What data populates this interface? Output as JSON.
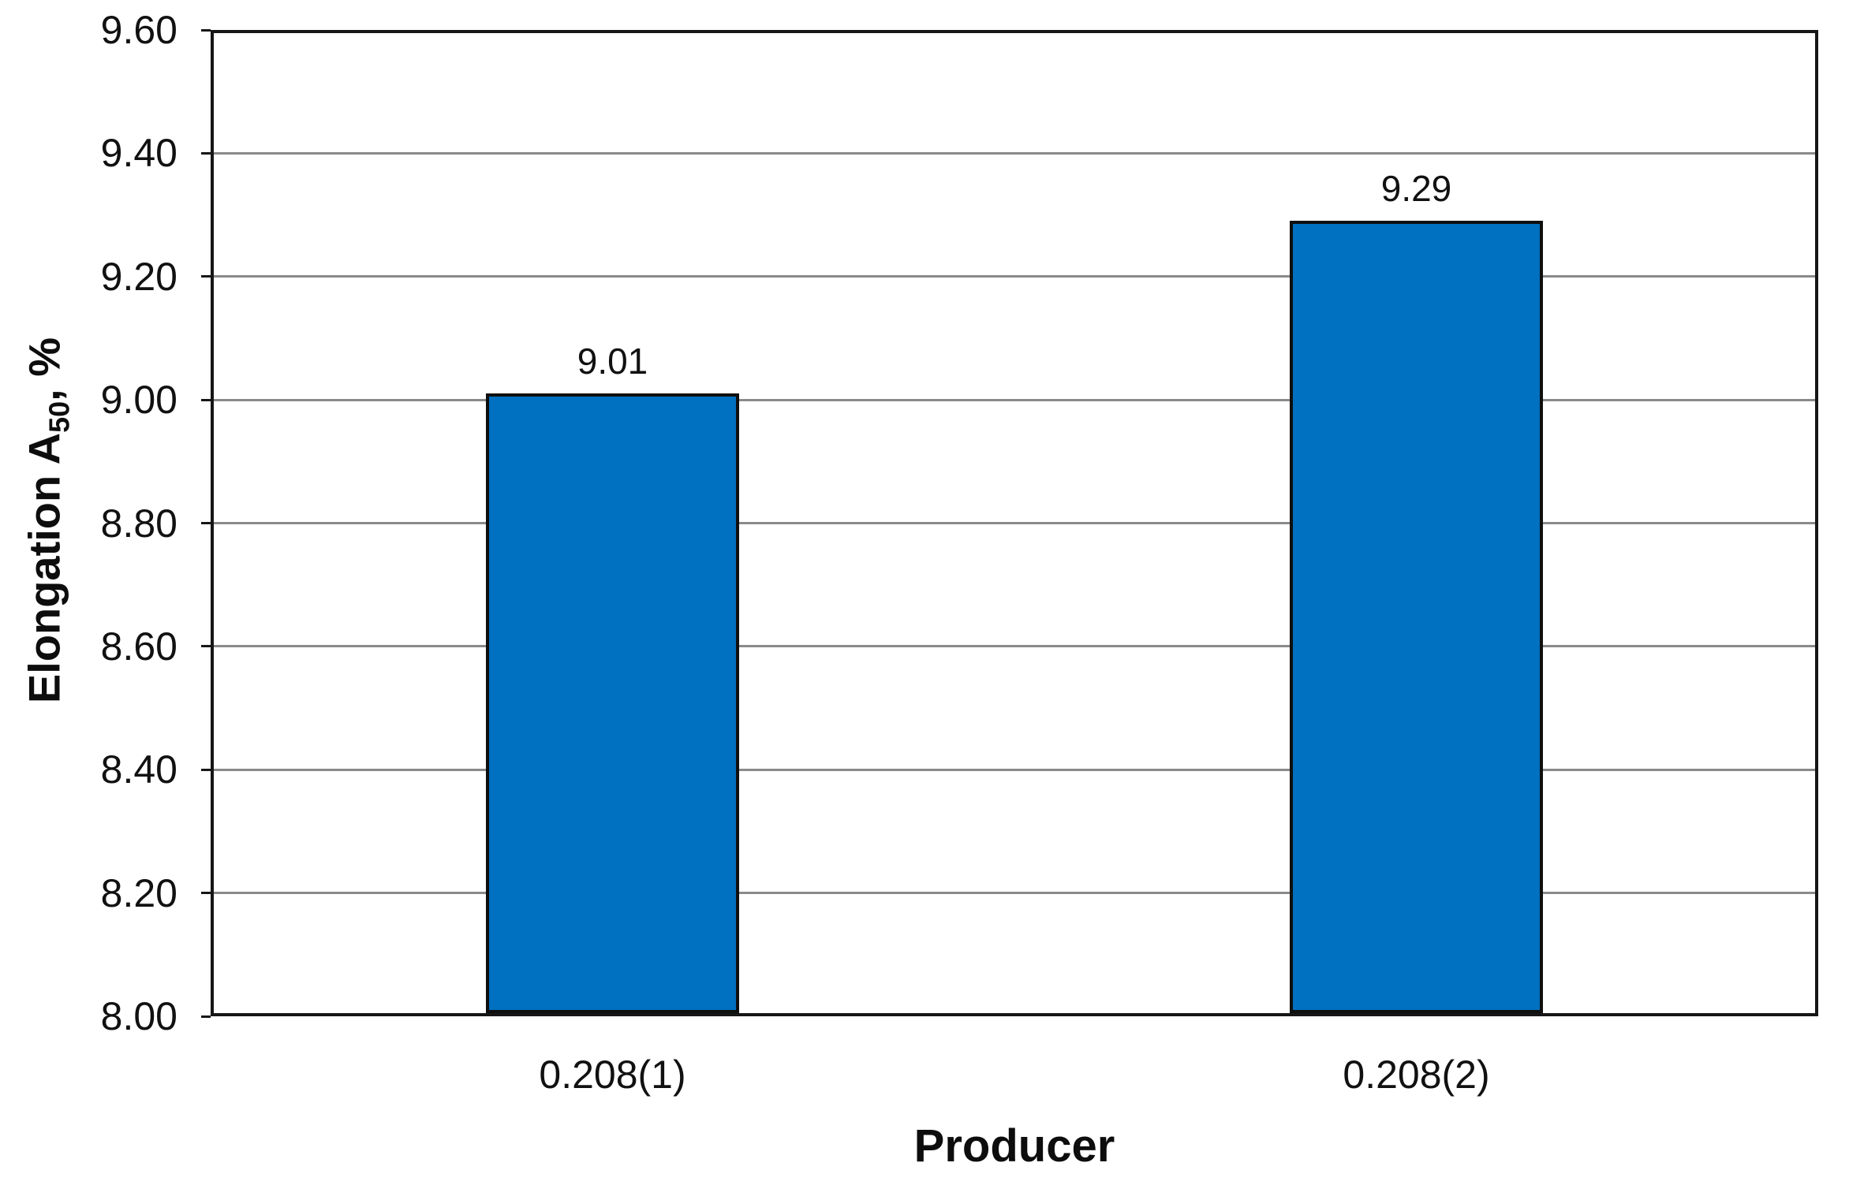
{
  "chart_data": {
    "type": "bar",
    "categories": [
      "0.208(1)",
      "0.208(2)"
    ],
    "values": [
      9.01,
      9.29
    ],
    "bar_labels": [
      "9.01",
      "9.29"
    ],
    "series_name": "Elongation A50",
    "title": "",
    "xlabel": "Producer",
    "ylabel_main": "Elongation A",
    "ylabel_sub": "50",
    "ylabel_tail": ", %",
    "ylim": [
      8.0,
      9.6
    ],
    "ytick_step": 0.2,
    "yticks": [
      "9.60",
      "9.40",
      "9.20",
      "9.00",
      "8.80",
      "8.60",
      "8.40",
      "8.20",
      "8.00"
    ],
    "grid": "horizontal-major",
    "legend": "none",
    "colors": {
      "bar_fill": "#0070C0",
      "bar_border": "#0f0f0f",
      "gridline": "#8a8a8a",
      "plot_border": "#161616",
      "text": "#111111"
    }
  }
}
